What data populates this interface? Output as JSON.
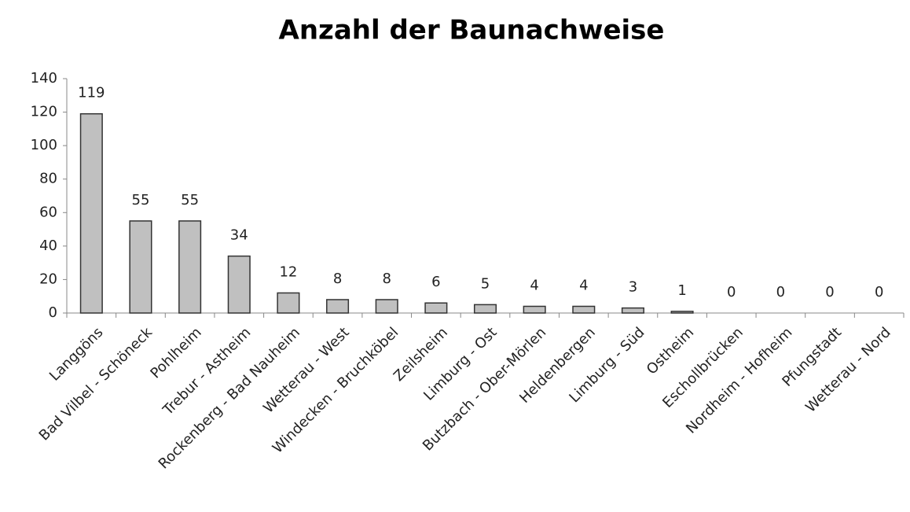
{
  "chart_data": {
    "type": "bar",
    "title": "Anzahl der Baunachweise",
    "categories": [
      "Langgöns",
      "Bad Vilbel - Schöneck",
      "Pohlheim",
      "Trebur - Astheim",
      "Rockenberg - Bad Nauheim",
      "Wetterau - West",
      "Windecken - Bruchköbel",
      "Zeilsheim",
      "Limburg - Ost",
      "Butzbach - Ober-Mörlen",
      "Heldenbergen",
      "Limburg - Süd",
      "Ostheim",
      "Eschollbrücken",
      "Nordheim - Hofheim",
      "Pfungstadt",
      "Wetterau - Nord"
    ],
    "values": [
      119,
      55,
      55,
      34,
      12,
      8,
      8,
      6,
      5,
      4,
      4,
      3,
      1,
      0,
      0,
      0,
      0
    ],
    "color": "#c0c0c0",
    "ylim": [
      0,
      140
    ],
    "yticks": [
      0,
      20,
      40,
      60,
      80,
      100,
      120,
      140
    ],
    "grid": false
  }
}
